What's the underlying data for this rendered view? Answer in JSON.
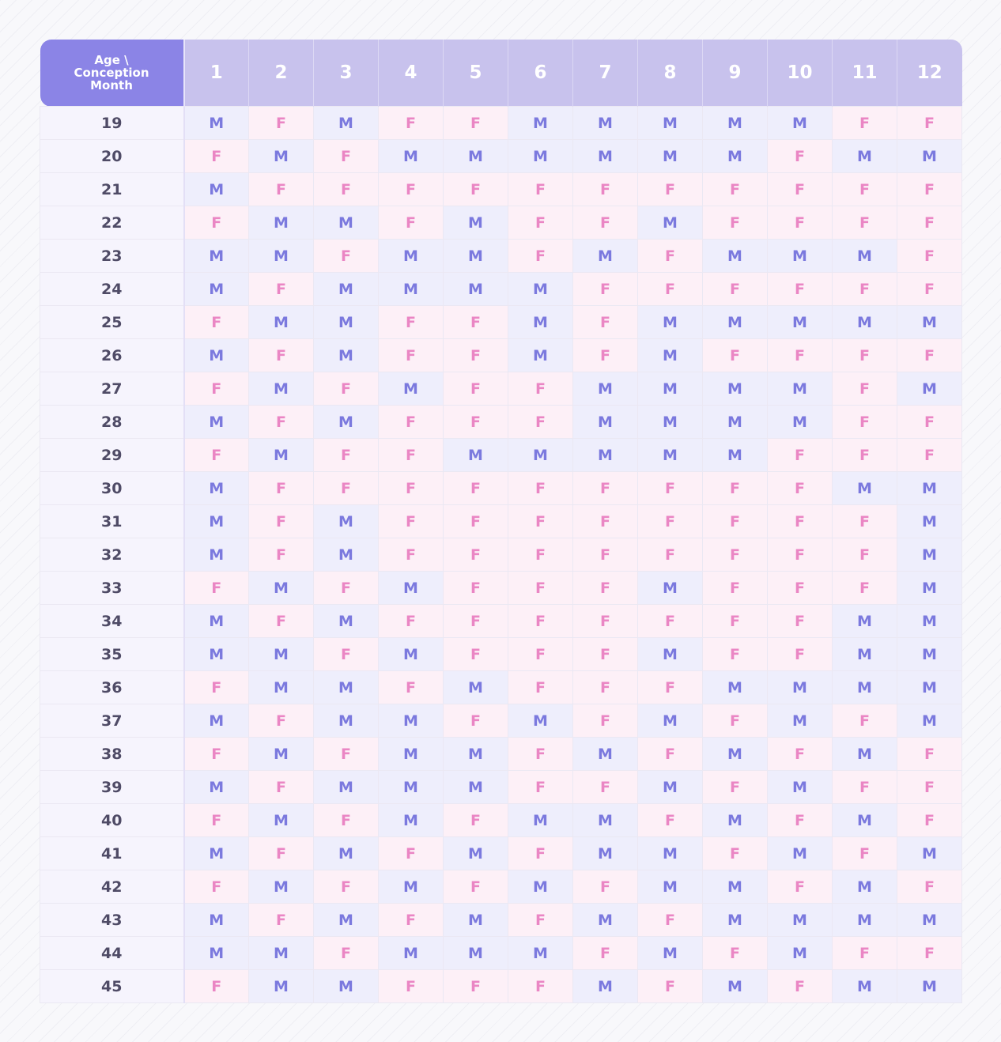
{
  "chart_data": {
    "type": "table",
    "corner_label": [
      "Age \\",
      "Conception",
      "Month"
    ],
    "columns": [
      "1",
      "2",
      "3",
      "4",
      "5",
      "6",
      "7",
      "8",
      "9",
      "10",
      "11",
      "12"
    ],
    "rows": [
      {
        "age": "19",
        "cells": [
          "M",
          "F",
          "M",
          "F",
          "F",
          "M",
          "M",
          "M",
          "M",
          "M",
          "F",
          "F"
        ]
      },
      {
        "age": "20",
        "cells": [
          "F",
          "M",
          "F",
          "M",
          "M",
          "M",
          "M",
          "M",
          "M",
          "F",
          "M",
          "M"
        ]
      },
      {
        "age": "21",
        "cells": [
          "M",
          "F",
          "F",
          "F",
          "F",
          "F",
          "F",
          "F",
          "F",
          "F",
          "F",
          "F"
        ]
      },
      {
        "age": "22",
        "cells": [
          "F",
          "M",
          "M",
          "F",
          "M",
          "F",
          "F",
          "M",
          "F",
          "F",
          "F",
          "F"
        ]
      },
      {
        "age": "23",
        "cells": [
          "M",
          "M",
          "F",
          "M",
          "M",
          "F",
          "M",
          "F",
          "M",
          "M",
          "M",
          "F"
        ]
      },
      {
        "age": "24",
        "cells": [
          "M",
          "F",
          "M",
          "M",
          "M",
          "M",
          "F",
          "F",
          "F",
          "F",
          "F",
          "F"
        ]
      },
      {
        "age": "25",
        "cells": [
          "F",
          "M",
          "M",
          "F",
          "F",
          "M",
          "F",
          "M",
          "M",
          "M",
          "M",
          "M"
        ]
      },
      {
        "age": "26",
        "cells": [
          "M",
          "F",
          "M",
          "F",
          "F",
          "M",
          "F",
          "M",
          "F",
          "F",
          "F",
          "F"
        ]
      },
      {
        "age": "27",
        "cells": [
          "F",
          "M",
          "F",
          "M",
          "F",
          "F",
          "M",
          "M",
          "M",
          "M",
          "F",
          "M"
        ]
      },
      {
        "age": "28",
        "cells": [
          "M",
          "F",
          "M",
          "F",
          "F",
          "F",
          "M",
          "M",
          "M",
          "M",
          "F",
          "F"
        ]
      },
      {
        "age": "29",
        "cells": [
          "F",
          "M",
          "F",
          "F",
          "M",
          "M",
          "M",
          "M",
          "M",
          "F",
          "F",
          "F"
        ]
      },
      {
        "age": "30",
        "cells": [
          "M",
          "F",
          "F",
          "F",
          "F",
          "F",
          "F",
          "F",
          "F",
          "F",
          "M",
          "M"
        ]
      },
      {
        "age": "31",
        "cells": [
          "M",
          "F",
          "M",
          "F",
          "F",
          "F",
          "F",
          "F",
          "F",
          "F",
          "F",
          "M"
        ]
      },
      {
        "age": "32",
        "cells": [
          "M",
          "F",
          "M",
          "F",
          "F",
          "F",
          "F",
          "F",
          "F",
          "F",
          "F",
          "M"
        ]
      },
      {
        "age": "33",
        "cells": [
          "F",
          "M",
          "F",
          "M",
          "F",
          "F",
          "F",
          "M",
          "F",
          "F",
          "F",
          "M"
        ]
      },
      {
        "age": "34",
        "cells": [
          "M",
          "F",
          "M",
          "F",
          "F",
          "F",
          "F",
          "F",
          "F",
          "F",
          "M",
          "M"
        ]
      },
      {
        "age": "35",
        "cells": [
          "M",
          "M",
          "F",
          "M",
          "F",
          "F",
          "F",
          "M",
          "F",
          "F",
          "M",
          "M"
        ]
      },
      {
        "age": "36",
        "cells": [
          "F",
          "M",
          "M",
          "F",
          "M",
          "F",
          "F",
          "F",
          "M",
          "M",
          "M",
          "M"
        ]
      },
      {
        "age": "37",
        "cells": [
          "M",
          "F",
          "M",
          "M",
          "F",
          "M",
          "F",
          "M",
          "F",
          "M",
          "F",
          "M"
        ]
      },
      {
        "age": "38",
        "cells": [
          "F",
          "M",
          "F",
          "M",
          "M",
          "F",
          "M",
          "F",
          "M",
          "F",
          "M",
          "F"
        ]
      },
      {
        "age": "39",
        "cells": [
          "M",
          "F",
          "M",
          "M",
          "M",
          "F",
          "F",
          "M",
          "F",
          "M",
          "F",
          "F"
        ]
      },
      {
        "age": "40",
        "cells": [
          "F",
          "M",
          "F",
          "M",
          "F",
          "M",
          "M",
          "F",
          "M",
          "F",
          "M",
          "F"
        ]
      },
      {
        "age": "41",
        "cells": [
          "M",
          "F",
          "M",
          "F",
          "M",
          "F",
          "M",
          "M",
          "F",
          "M",
          "F",
          "M"
        ]
      },
      {
        "age": "42",
        "cells": [
          "F",
          "M",
          "F",
          "M",
          "F",
          "M",
          "F",
          "M",
          "M",
          "F",
          "M",
          "F"
        ]
      },
      {
        "age": "43",
        "cells": [
          "M",
          "F",
          "M",
          "F",
          "M",
          "F",
          "M",
          "F",
          "M",
          "M",
          "M",
          "M"
        ]
      },
      {
        "age": "44",
        "cells": [
          "M",
          "M",
          "F",
          "M",
          "M",
          "M",
          "F",
          "M",
          "F",
          "M",
          "F",
          "F"
        ]
      },
      {
        "age": "45",
        "cells": [
          "F",
          "M",
          "M",
          "F",
          "F",
          "F",
          "M",
          "F",
          "M",
          "F",
          "M",
          "M"
        ]
      }
    ],
    "colors": {
      "header_bg": "#c8c2ed",
      "corner_bg": "#8b84e6",
      "m_bg": "#eeeefc",
      "m_text": "#7b79de",
      "f_bg": "#fdf0f7",
      "f_text": "#ea86c4",
      "age_bg": "#f6f4fd",
      "age_text": "#4f4b66"
    }
  }
}
